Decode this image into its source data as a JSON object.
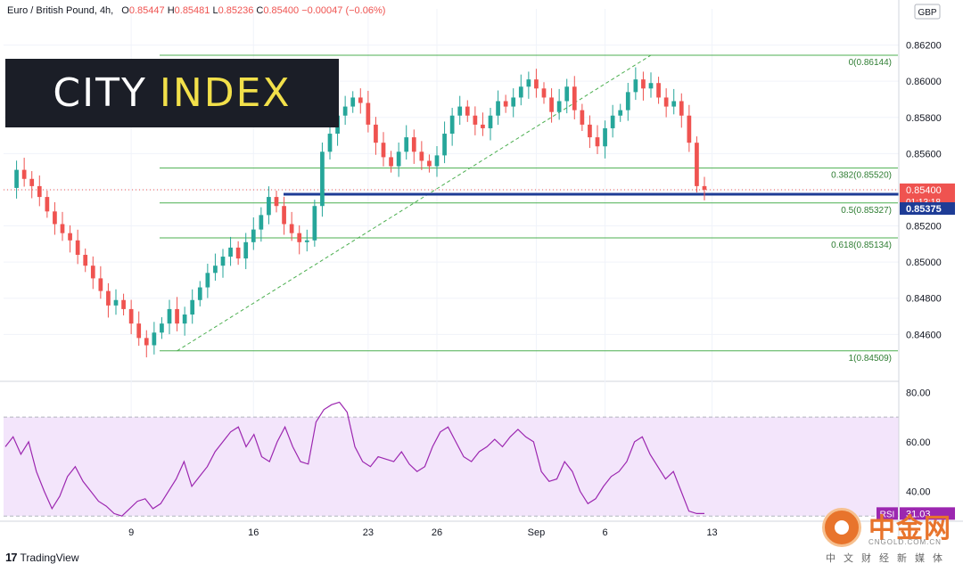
{
  "header": {
    "symbol": "Euro / British Pound, 4h,",
    "o_label": "O",
    "o_value": "0.85447",
    "h_label": "H",
    "h_value": "0.85481",
    "l_label": "L",
    "l_value": "0.85236",
    "c_label": "C",
    "c_value": "0.85400",
    "change": "−0.00047 (−0.06%)"
  },
  "logo": {
    "part1": "CITY",
    "part2": "INDEX"
  },
  "footer": {
    "tradingview": "TradingView",
    "tv_mark": "17"
  },
  "watermark": {
    "title": "中金网",
    "url": "CNGOLD.COM.CN",
    "subtitle": "中文财经新媒体"
  },
  "colors": {
    "up": "#26a69a",
    "down": "#ef5350",
    "fib": "#4caf50",
    "support": "#1e3c96",
    "rsi": "#9c27b0",
    "rsi_band": "#f3e5fb"
  },
  "chart_data": [
    {
      "type": "candlestick",
      "title": "Euro / British Pound, 4h",
      "currency": "GBP",
      "y_ticks": [
        0.846,
        0.848,
        0.85,
        0.852,
        0.854,
        0.856,
        0.858,
        0.86,
        0.862
      ],
      "y_tick_labels": [
        "0.84600",
        "0.84800",
        "0.85000",
        "0.85200",
        "0.85400",
        "0.85600",
        "0.85800",
        "0.86000",
        "0.86200"
      ],
      "ylim": [
        0.8437,
        0.864
      ],
      "x_ticks": [
        "9",
        "16",
        "23",
        "26",
        "Sep",
        "6",
        "13"
      ],
      "last_price": "0.85400",
      "countdown": "01:13:18",
      "support_label": "0.85375",
      "support_level": 0.85375,
      "fib_levels": [
        {
          "ratio": "0",
          "value": 0.86144,
          "label": "0(0.86144)"
        },
        {
          "ratio": "0.382",
          "value": 0.8552,
          "label": "0.382(0.85520)"
        },
        {
          "ratio": "0.5",
          "value": 0.85327,
          "label": "0.5(0.85327)"
        },
        {
          "ratio": "0.618",
          "value": 0.85134,
          "label": "0.618(0.85134)"
        },
        {
          "ratio": "1",
          "value": 0.84509,
          "label": "1(0.84509)"
        }
      ],
      "close_path": [
        0.8541,
        0.8551,
        0.8546,
        0.8542,
        0.8536,
        0.8528,
        0.8521,
        0.8516,
        0.8512,
        0.8504,
        0.8498,
        0.8491,
        0.8484,
        0.8476,
        0.8479,
        0.8474,
        0.8466,
        0.8458,
        0.8454,
        0.8461,
        0.8466,
        0.8474,
        0.8466,
        0.8471,
        0.8479,
        0.8486,
        0.8494,
        0.8498,
        0.8503,
        0.8508,
        0.8502,
        0.8511,
        0.8518,
        0.8526,
        0.8536,
        0.8531,
        0.8521,
        0.8516,
        0.8511,
        0.8512,
        0.8531,
        0.8561,
        0.8571,
        0.8581,
        0.8586,
        0.8591,
        0.8588,
        0.8576,
        0.8566,
        0.8558,
        0.8553,
        0.8561,
        0.8569,
        0.8561,
        0.8556,
        0.8553,
        0.8559,
        0.8571,
        0.8581,
        0.8586,
        0.8581,
        0.8576,
        0.8574,
        0.8581,
        0.8589,
        0.8586,
        0.8591,
        0.8597,
        0.8601,
        0.8596,
        0.8591,
        0.8583,
        0.8589,
        0.8597,
        0.8584,
        0.8576,
        0.8569,
        0.8564,
        0.8574,
        0.8581,
        0.8584,
        0.8594,
        0.8601,
        0.8596,
        0.8599,
        0.8591,
        0.8586,
        0.8589,
        0.8581,
        0.8566,
        0.8542,
        0.854
      ],
      "trendline": {
        "from": 0.84509,
        "to": 0.86144
      }
    },
    {
      "type": "line",
      "title": "RSI",
      "value_label": "31.03",
      "y_ticks": [
        40,
        60,
        80
      ],
      "y_tick_labels": [
        "40.00",
        "60.00",
        "80.00"
      ],
      "ylim": [
        29,
        83
      ],
      "band": [
        30,
        70
      ],
      "values": [
        58,
        62,
        55,
        60,
        48,
        40,
        33,
        38,
        46,
        50,
        44,
        40,
        36,
        34,
        31,
        30,
        33,
        36,
        37,
        33,
        35,
        40,
        45,
        52,
        42,
        46,
        50,
        56,
        60,
        64,
        66,
        58,
        63,
        54,
        52,
        60,
        66,
        58,
        52,
        51,
        68,
        73,
        75,
        76,
        72,
        58,
        52,
        50,
        54,
        53,
        52,
        56,
        51,
        48,
        50,
        58,
        64,
        66,
        60,
        54,
        52,
        56,
        58,
        61,
        58,
        62,
        65,
        62,
        60,
        48,
        44,
        45,
        52,
        48,
        40,
        35,
        37,
        42,
        46,
        48,
        52,
        60,
        62,
        55,
        50,
        45,
        48,
        40,
        32,
        31,
        31.03
      ]
    }
  ]
}
